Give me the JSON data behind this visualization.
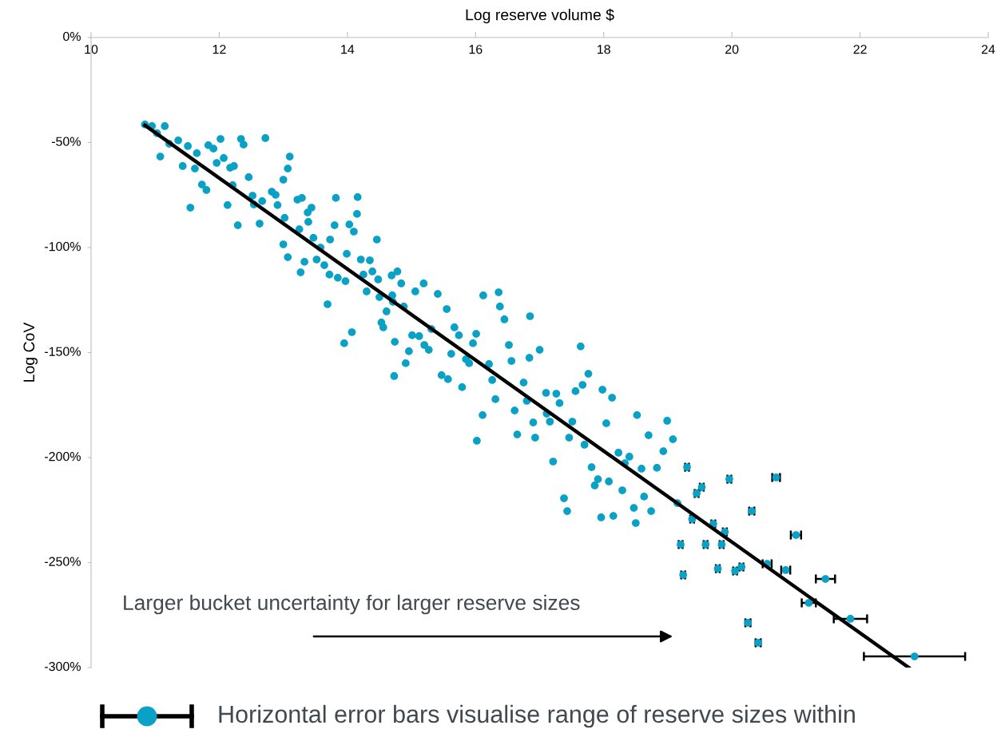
{
  "chart_data": {
    "type": "scatter",
    "xlabel": "Log reserve volume $",
    "ylabel": "Log CoV",
    "xlim": [
      10,
      24
    ],
    "xticks": [
      10,
      12,
      14,
      16,
      18,
      20,
      22,
      24
    ],
    "ylim": [
      -300,
      0
    ],
    "yticks": [
      {
        "value": -300,
        "label": "-300%"
      },
      {
        "value": -250,
        "label": "-250%"
      },
      {
        "value": -200,
        "label": "-200%"
      },
      {
        "value": -150,
        "label": "-150%"
      },
      {
        "value": -100,
        "label": "-100%"
      },
      {
        "value": -50,
        "label": "-50%"
      },
      {
        "value": 0,
        "label": "0%"
      }
    ],
    "grid": false,
    "legend": false,
    "annotations": [
      "Larger bucket uncertainty for larger reserve sizes",
      "Horizontal error bars visualise range of reserve sizes within"
    ],
    "series": [
      {
        "type": "scatter",
        "color": "#0aa1c6",
        "marker": "circle",
        "x": [
          10.84,
          10.95,
          11.15,
          11.03,
          11.22,
          11.36,
          11.08,
          11.51,
          11.43,
          11.65,
          11.83,
          11.91,
          12.02,
          11.62,
          11.73,
          11.8,
          11.55,
          11.96,
          12.07,
          12.17,
          12.34,
          12.38,
          12.23,
          12.21,
          12.13,
          12.29,
          12.46,
          12.52,
          12.54,
          12.63,
          12.72,
          12.67,
          12.82,
          12.88,
          13.0,
          12.91,
          13.1,
          13.07,
          13.02,
          13.0,
          13.07,
          13.22,
          13.29,
          13.25,
          13.33,
          13.38,
          13.44,
          13.39,
          13.47,
          13.27,
          13.58,
          13.52,
          13.64,
          13.72,
          13.69,
          13.73,
          13.82,
          13.8,
          13.85,
          13.97,
          13.95,
          14.07,
          14.03,
          13.99,
          14.15,
          14.16,
          14.1,
          14.21,
          14.25,
          14.3,
          14.35,
          14.39,
          14.46,
          14.48,
          14.5,
          14.53,
          14.56,
          14.61,
          14.69,
          14.7,
          14.71,
          14.73,
          14.74,
          14.78,
          14.84,
          14.88,
          14.91,
          14.96,
          15.01,
          15.06,
          15.12,
          15.19,
          15.2,
          15.27,
          15.31,
          15.41,
          15.47,
          15.57,
          15.55,
          15.62,
          15.67,
          15.74,
          15.79,
          15.85,
          15.9,
          15.96,
          16.01,
          16.02,
          16.11,
          16.12,
          16.21,
          16.26,
          16.31,
          16.36,
          16.38,
          16.45,
          16.52,
          16.56,
          16.61,
          16.65,
          16.75,
          16.8,
          16.84,
          16.85,
          16.9,
          16.93,
          17.0,
          17.1,
          17.11,
          17.16,
          17.21,
          17.26,
          17.31,
          17.38,
          17.43,
          17.46,
          17.51,
          17.56,
          17.64,
          17.67,
          17.7,
          17.76,
          17.81,
          17.86,
          17.91,
          17.96,
          17.98,
          18.04,
          18.08,
          18.13,
          18.15,
          18.23,
          18.29,
          18.33,
          18.4,
          18.47,
          18.52,
          18.5,
          18.59,
          18.63,
          18.7,
          18.74,
          18.83,
          18.93,
          18.99,
          19.08,
          19.15
        ],
        "values": [
          -41.4,
          -42.2,
          -42.2,
          -45.6,
          -50.6,
          -49.0,
          -56.7,
          -51.7,
          -61.2,
          -55.1,
          -51.3,
          -52.9,
          -48.3,
          -62.4,
          -70.0,
          -72.6,
          -81.0,
          -59.7,
          -57.4,
          -62.0,
          -48.3,
          -51.0,
          -61.2,
          -70.3,
          -79.8,
          -89.4,
          -66.5,
          -75.3,
          -79.5,
          -88.6,
          -47.9,
          -77.9,
          -73.4,
          -74.9,
          -67.7,
          -79.8,
          -56.7,
          -62.4,
          -85.9,
          -98.5,
          -104.6,
          -77.2,
          -76.4,
          -91.3,
          -106.8,
          -83.3,
          -81.0,
          -87.8,
          -95.4,
          -111.8,
          -100.0,
          -105.7,
          -108.4,
          -112.9,
          -127.0,
          -96.2,
          -76.4,
          -89.4,
          -114.4,
          -116.0,
          -145.6,
          -140.3,
          -89.0,
          -103.0,
          -84.0,
          -76.0,
          -92.4,
          -105.7,
          -112.9,
          -120.9,
          -106.1,
          -111.4,
          -96.2,
          -115.2,
          -123.6,
          -135.7,
          -138.0,
          -130.4,
          -113.3,
          -122.8,
          -125.9,
          -161.2,
          -144.9,
          -111.4,
          -117.1,
          -128.1,
          -155.1,
          -149.4,
          -141.8,
          -120.9,
          -142.2,
          -117.1,
          -146.4,
          -148.7,
          -138.8,
          -122.1,
          -160.8,
          -162.7,
          -129.3,
          -150.6,
          -138.0,
          -141.8,
          -166.5,
          -153.2,
          -155.1,
          -145.6,
          -141.1,
          -192.0,
          -179.8,
          -122.8,
          -155.5,
          -163.1,
          -172.2,
          -121.3,
          -128.1,
          -134.2,
          -146.4,
          -154.0,
          -177.6,
          -189.0,
          -164.3,
          -173.0,
          -152.5,
          -132.7,
          -183.3,
          -190.5,
          -148.7,
          -169.2,
          -179.1,
          -182.9,
          -201.9,
          -169.6,
          -174.1,
          -219.4,
          -225.5,
          -190.5,
          -182.9,
          -168.4,
          -147.1,
          -165.4,
          -193.9,
          -160.1,
          -204.6,
          -213.3,
          -210.3,
          -228.5,
          -167.7,
          -183.7,
          -211.4,
          -171.5,
          -227.8,
          -197.7,
          -215.6,
          -202.7,
          -199.6,
          -224.0,
          -179.8,
          -231.2,
          -205.3,
          -218.6,
          -189.4,
          -225.5,
          -204.9,
          -197.0,
          -182.5,
          -191.3,
          -221.7
        ]
      },
      {
        "type": "scatter",
        "color": "#0aa1c6",
        "marker": "circle",
        "x": [
          19.2,
          19.24,
          19.3,
          19.38,
          19.45,
          19.53,
          19.59,
          19.71,
          19.78,
          19.84,
          19.89,
          19.96,
          20.05,
          20.15,
          20.25,
          20.31,
          20.41,
          20.55,
          20.69,
          20.84,
          21.0,
          21.2,
          21.46,
          21.85,
          22.85
        ],
        "values": [
          -241.4,
          -255.9,
          -204.6,
          -229.3,
          -217.1,
          -214.1,
          -241.4,
          -231.6,
          -252.9,
          -241.4,
          -235.4,
          -210.3,
          -254.0,
          -252.1,
          -278.7,
          -225.5,
          -288.2,
          -250.6,
          -209.5,
          -253.6,
          -236.9,
          -269.2,
          -257.8,
          -276.8,
          -294.7
        ],
        "xerrors": [
          0.03,
          0.03,
          0.03,
          0.03,
          0.03,
          0.03,
          0.03,
          0.03,
          0.03,
          0.03,
          0.03,
          0.03,
          0.03,
          0.03,
          0.04,
          0.04,
          0.04,
          0.07,
          0.06,
          0.07,
          0.08,
          0.11,
          0.15,
          0.26,
          0.79
        ]
      },
      {
        "type": "line",
        "color": "#000000",
        "x": [
          10.84,
          22.76
        ],
        "values": [
          -41.8,
          -300
        ]
      }
    ]
  }
}
